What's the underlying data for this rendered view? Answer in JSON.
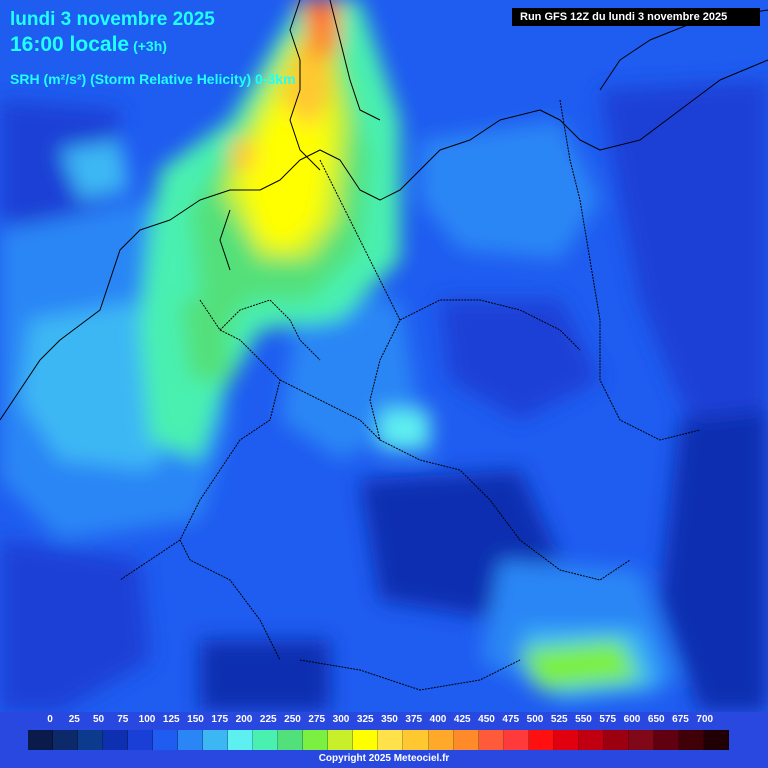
{
  "title": {
    "date": "lundi 3 novembre 2025",
    "time": "16:00 locale",
    "offset": "(+3h)"
  },
  "field_label": "SRH (m²/s²) (Storm Relative Helicity) 0-3km",
  "run_label": "Run GFS 12Z du lundi 3 novembre 2025",
  "legend": {
    "labels": [
      "0",
      "25",
      "50",
      "75",
      "100",
      "125",
      "150",
      "175",
      "200",
      "225",
      "250",
      "275",
      "300",
      "325",
      "350",
      "375",
      "400",
      "425",
      "450",
      "475",
      "500",
      "525",
      "550",
      "575",
      "600",
      "650",
      "675",
      "700"
    ],
    "colors": [
      "#0a1a4a",
      "#0c2a6a",
      "#0c3a8c",
      "#0e2fb0",
      "#1a3fd6",
      "#1f5cf0",
      "#2b86f5",
      "#3cb7f4",
      "#5ef0f0",
      "#4af0b0",
      "#52e07a",
      "#7cf040",
      "#c8f02a",
      "#ffff00",
      "#ffe14a",
      "#ffc830",
      "#ffa82a",
      "#ff8a2a",
      "#ff5a3a",
      "#ff3a3a",
      "#ff1010",
      "#e00010",
      "#c00010",
      "#9c0010",
      "#800818",
      "#600010",
      "#400008",
      "#200004"
    ]
  },
  "copyright": "Copyright 2025 Meteociel.fr"
}
